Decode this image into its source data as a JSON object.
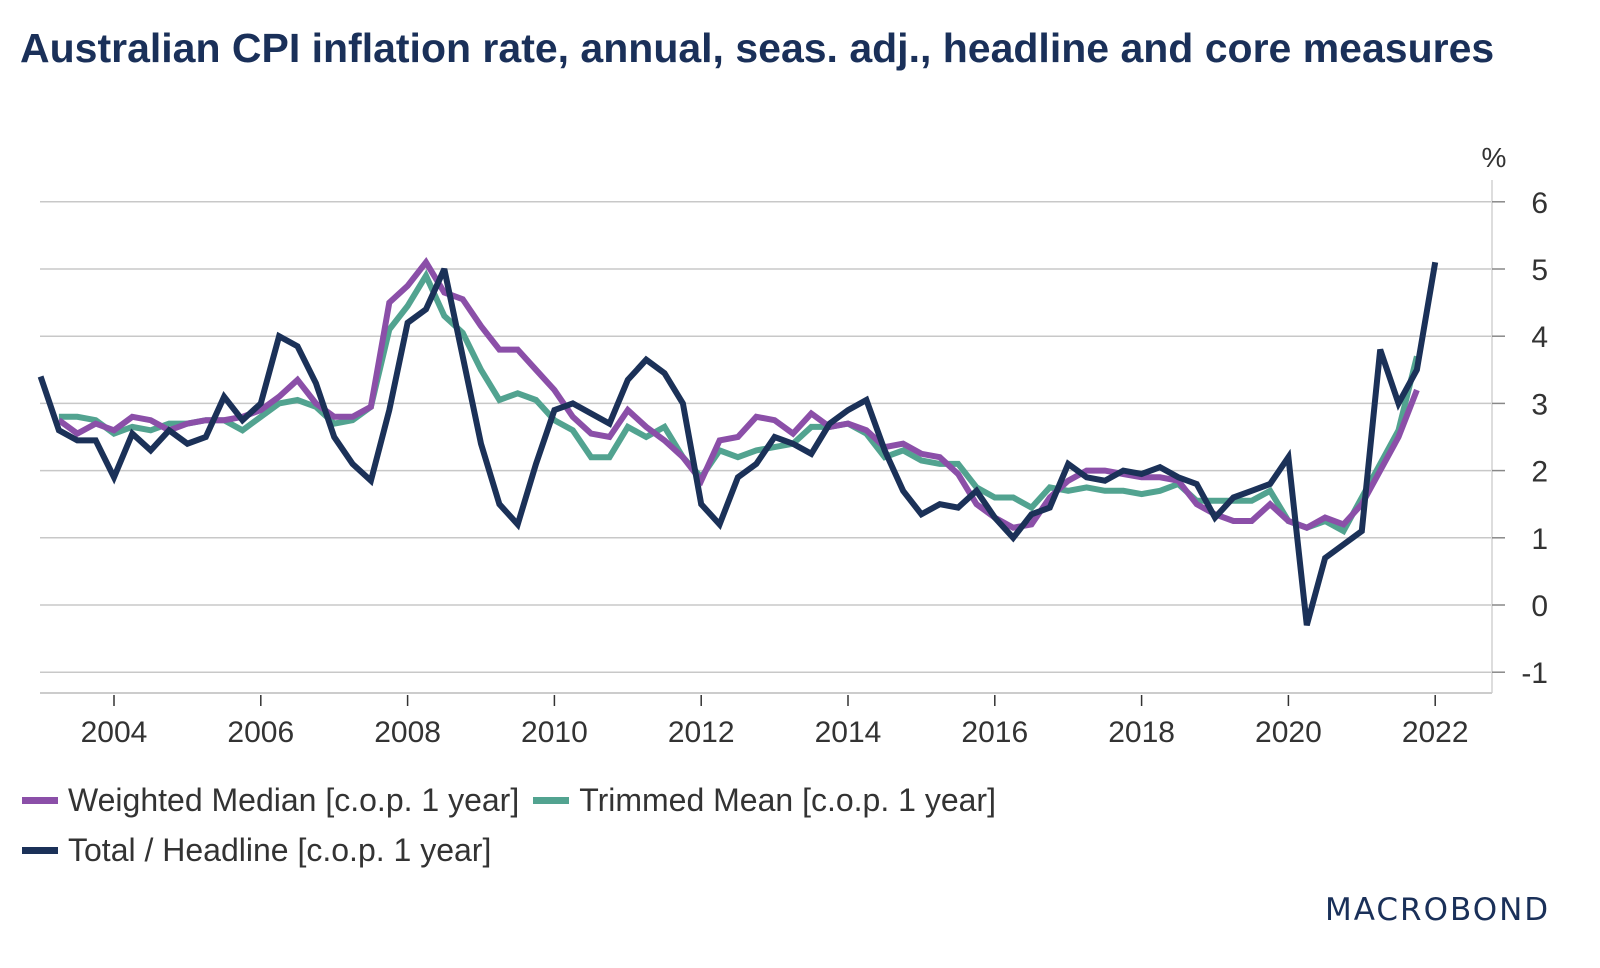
{
  "title": "Australian CPI inflation rate, annual, seas. adj., headline and core measures",
  "logo": "MACROBOND",
  "chart_data": {
    "type": "line",
    "title": "Australian CPI inflation rate, annual, seas. adj., headline and core measures",
    "xlabel": "",
    "ylabel": "%",
    "ylim": [
      -1.3,
      6.4
    ],
    "xlim": [
      2003.0,
      2023.0
    ],
    "y_ticks": [
      "-1",
      "0",
      "1",
      "2",
      "3",
      "4",
      "5",
      "6"
    ],
    "x_ticks": [
      "2004",
      "2006",
      "2008",
      "2010",
      "2012",
      "2014",
      "2016",
      "2018",
      "2020",
      "2022"
    ],
    "grid": true,
    "legend_position": "bottom-left",
    "frequency": "quarterly",
    "series": [
      {
        "name": "Weighted Median [c.o.p. 1 year]",
        "color": "#8b4fa8",
        "start": 2003.25,
        "values": [
          2.75,
          2.55,
          2.7,
          2.6,
          2.8,
          2.75,
          2.6,
          2.7,
          2.75,
          2.75,
          2.8,
          2.9,
          3.1,
          3.35,
          3.0,
          2.8,
          2.8,
          2.95,
          4.5,
          4.75,
          5.1,
          4.65,
          4.55,
          4.15,
          3.8,
          3.8,
          3.5,
          3.2,
          2.8,
          2.55,
          2.5,
          2.9,
          2.65,
          2.45,
          2.2,
          1.85,
          2.45,
          2.5,
          2.8,
          2.75,
          2.55,
          2.85,
          2.65,
          2.7,
          2.6,
          2.35,
          2.4,
          2.25,
          2.2,
          1.95,
          1.5,
          1.3,
          1.15,
          1.2,
          1.6,
          1.85,
          2.0,
          2.0,
          1.95,
          1.9,
          1.9,
          1.85,
          1.5,
          1.35,
          1.25,
          1.25,
          1.5,
          1.25,
          1.15,
          1.3,
          1.2,
          1.5,
          2.0,
          2.5,
          3.2
        ]
      },
      {
        "name": "Trimmed Mean [c.o.p. 1 year]",
        "color": "#52a390",
        "start": 2003.25,
        "values": [
          2.8,
          2.8,
          2.75,
          2.55,
          2.65,
          2.6,
          2.7,
          2.7,
          2.75,
          2.75,
          2.6,
          2.8,
          3.0,
          3.05,
          2.95,
          2.7,
          2.75,
          2.95,
          4.1,
          4.45,
          4.9,
          4.3,
          4.05,
          3.5,
          3.05,
          3.15,
          3.05,
          2.75,
          2.6,
          2.2,
          2.2,
          2.65,
          2.5,
          2.65,
          2.2,
          1.9,
          2.3,
          2.2,
          2.3,
          2.35,
          2.4,
          2.65,
          2.65,
          2.7,
          2.55,
          2.2,
          2.3,
          2.15,
          2.1,
          2.1,
          1.75,
          1.6,
          1.6,
          1.45,
          1.75,
          1.7,
          1.75,
          1.7,
          1.7,
          1.65,
          1.7,
          1.8,
          1.55,
          1.55,
          1.55,
          1.55,
          1.7,
          1.25,
          1.15,
          1.25,
          1.1,
          1.6,
          2.1,
          2.6,
          3.7
        ]
      },
      {
        "name": "Total / Headline [c.o.p. 1 year]",
        "color": "#1b3158",
        "start": 2003.0,
        "values": [
          3.4,
          2.6,
          2.45,
          2.45,
          1.9,
          2.55,
          2.3,
          2.6,
          2.4,
          2.5,
          3.1,
          2.75,
          3.0,
          4.0,
          3.85,
          3.3,
          2.5,
          2.1,
          1.85,
          2.9,
          4.2,
          4.4,
          5.0,
          3.7,
          2.4,
          1.5,
          1.2,
          2.1,
          2.9,
          3.0,
          2.85,
          2.7,
          3.35,
          3.65,
          3.45,
          3.0,
          1.5,
          1.2,
          1.9,
          2.1,
          2.5,
          2.4,
          2.25,
          2.7,
          2.9,
          3.05,
          2.3,
          1.7,
          1.35,
          1.5,
          1.45,
          1.7,
          1.3,
          1.0,
          1.35,
          1.45,
          2.1,
          1.9,
          1.85,
          2.0,
          1.95,
          2.05,
          1.9,
          1.8,
          1.3,
          1.6,
          1.7,
          1.8,
          2.2,
          -0.3,
          0.7,
          0.9,
          1.1,
          3.8,
          3.0,
          3.5,
          5.1
        ]
      }
    ]
  }
}
